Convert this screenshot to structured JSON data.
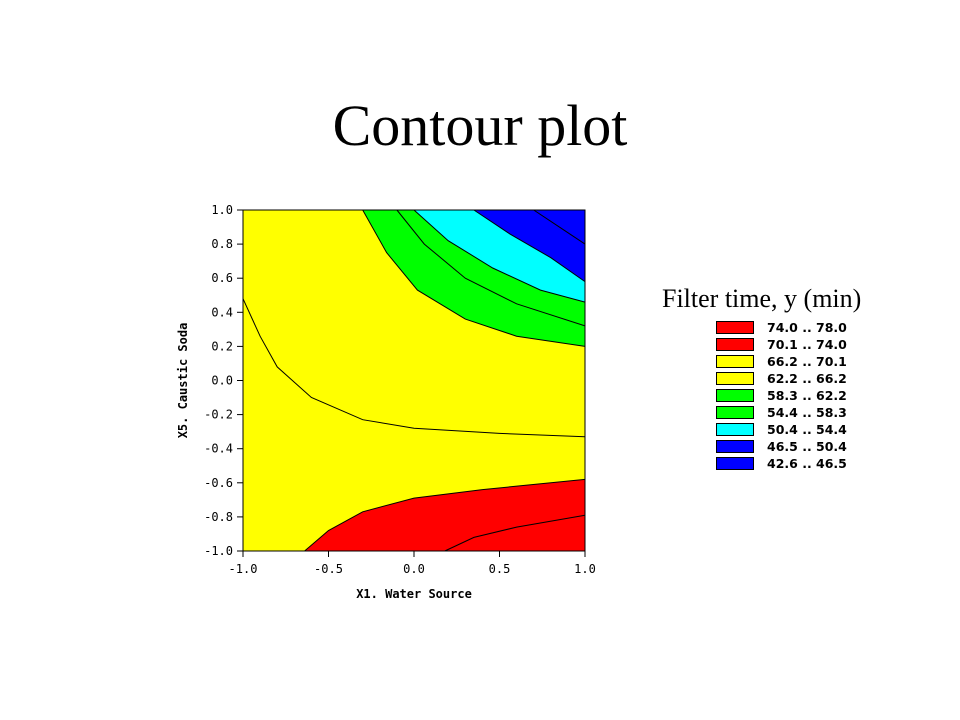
{
  "slide": {
    "title": "Contour plot"
  },
  "chart_data": {
    "type": "contour",
    "xlabel": "X1. Water Source",
    "ylabel": "X5. Caustic Soda",
    "xlim": [
      -1.0,
      1.0
    ],
    "ylim": [
      -1.0,
      1.0
    ],
    "x_ticks": [
      "-1.0",
      "-0.5",
      "0.0",
      "0.5",
      "1.0"
    ],
    "y_ticks": [
      "1.0",
      "0.8",
      "0.6",
      "0.4",
      "0.2",
      "0.0",
      "-0.2",
      "-0.4",
      "-0.6",
      "-0.8",
      "-1.0"
    ],
    "legend_title": "Filter time, y (min)",
    "levels": [
      {
        "label": "74.0 .. 78.0",
        "min": 74.0,
        "max": 78.0,
        "color": "#ff0000"
      },
      {
        "label": "70.1 .. 74.0",
        "min": 70.1,
        "max": 74.0,
        "color": "#ff0000"
      },
      {
        "label": "66.2 .. 70.1",
        "min": 66.2,
        "max": 70.1,
        "color": "#ffff00"
      },
      {
        "label": "62.2 .. 66.2",
        "min": 62.2,
        "max": 66.2,
        "color": "#ffff00"
      },
      {
        "label": "58.3 .. 62.2",
        "min": 58.3,
        "max": 62.2,
        "color": "#00ff00"
      },
      {
        "label": "54.4 .. 58.3",
        "min": 54.4,
        "max": 58.3,
        "color": "#00ff00"
      },
      {
        "label": "50.4 .. 54.4",
        "min": 50.4,
        "max": 54.4,
        "color": "#00ffff"
      },
      {
        "label": "46.5 .. 50.4",
        "min": 46.5,
        "max": 50.4,
        "color": "#0000ff"
      },
      {
        "label": "42.6 .. 46.5",
        "min": 42.6,
        "max": 46.5,
        "color": "#0000ff"
      }
    ],
    "regions": [
      {
        "band": "yellow",
        "color": "#ffff00",
        "polygon": [
          [
            -1,
            -1
          ],
          [
            1,
            -1
          ],
          [
            1,
            1
          ],
          [
            -1,
            1
          ]
        ]
      },
      {
        "band": "green",
        "color": "#00ff00",
        "polygon": [
          [
            -0.3,
            1.0
          ],
          [
            -0.16,
            0.75
          ],
          [
            0.02,
            0.53
          ],
          [
            0.3,
            0.36
          ],
          [
            0.6,
            0.26
          ],
          [
            1.0,
            0.2
          ],
          [
            1.0,
            1.0
          ]
        ]
      },
      {
        "band": "cyan",
        "color": "#00ffff",
        "polygon": [
          [
            0.0,
            1.0
          ],
          [
            0.2,
            0.82
          ],
          [
            0.46,
            0.66
          ],
          [
            0.74,
            0.53
          ],
          [
            1.0,
            0.46
          ],
          [
            1.0,
            1.0
          ]
        ]
      },
      {
        "band": "blue",
        "color": "#0000ff",
        "polygon": [
          [
            0.35,
            1.0
          ],
          [
            0.56,
            0.86
          ],
          [
            0.8,
            0.72
          ],
          [
            1.0,
            0.58
          ],
          [
            1.0,
            1.0
          ]
        ]
      },
      {
        "band": "red",
        "color": "#ff0000",
        "polygon": [
          [
            -0.64,
            -1.0
          ],
          [
            -0.5,
            -0.88
          ],
          [
            -0.3,
            -0.77
          ],
          [
            0.0,
            -0.69
          ],
          [
            0.4,
            -0.64
          ],
          [
            1.0,
            -0.58
          ],
          [
            1.0,
            -1.0
          ]
        ]
      }
    ],
    "contour_lines": [
      [
        [
          -0.3,
          1.0
        ],
        [
          -0.16,
          0.75
        ],
        [
          0.02,
          0.53
        ],
        [
          0.3,
          0.36
        ],
        [
          0.6,
          0.26
        ],
        [
          1.0,
          0.2
        ]
      ],
      [
        [
          -0.1,
          1.0
        ],
        [
          0.06,
          0.8
        ],
        [
          0.3,
          0.6
        ],
        [
          0.6,
          0.45
        ],
        [
          1.0,
          0.32
        ]
      ],
      [
        [
          0.0,
          1.0
        ],
        [
          0.2,
          0.82
        ],
        [
          0.46,
          0.66
        ],
        [
          0.74,
          0.53
        ],
        [
          1.0,
          0.46
        ]
      ],
      [
        [
          0.35,
          1.0
        ],
        [
          0.56,
          0.86
        ],
        [
          0.8,
          0.72
        ],
        [
          1.0,
          0.58
        ]
      ],
      [
        [
          0.7,
          1.0
        ],
        [
          0.85,
          0.9
        ],
        [
          1.0,
          0.8
        ]
      ],
      [
        [
          -1.0,
          0.48
        ],
        [
          -0.9,
          0.26
        ],
        [
          -0.8,
          0.08
        ],
        [
          -0.6,
          -0.1
        ],
        [
          -0.3,
          -0.23
        ],
        [
          0.0,
          -0.28
        ],
        [
          0.5,
          -0.31
        ],
        [
          1.0,
          -0.33
        ]
      ],
      [
        [
          -0.64,
          -1.0
        ],
        [
          -0.5,
          -0.88
        ],
        [
          -0.3,
          -0.77
        ],
        [
          0.0,
          -0.69
        ],
        [
          0.4,
          -0.64
        ],
        [
          1.0,
          -0.58
        ]
      ],
      [
        [
          0.18,
          -1.0
        ],
        [
          0.35,
          -0.92
        ],
        [
          0.6,
          -0.86
        ],
        [
          1.0,
          -0.79
        ]
      ]
    ]
  }
}
